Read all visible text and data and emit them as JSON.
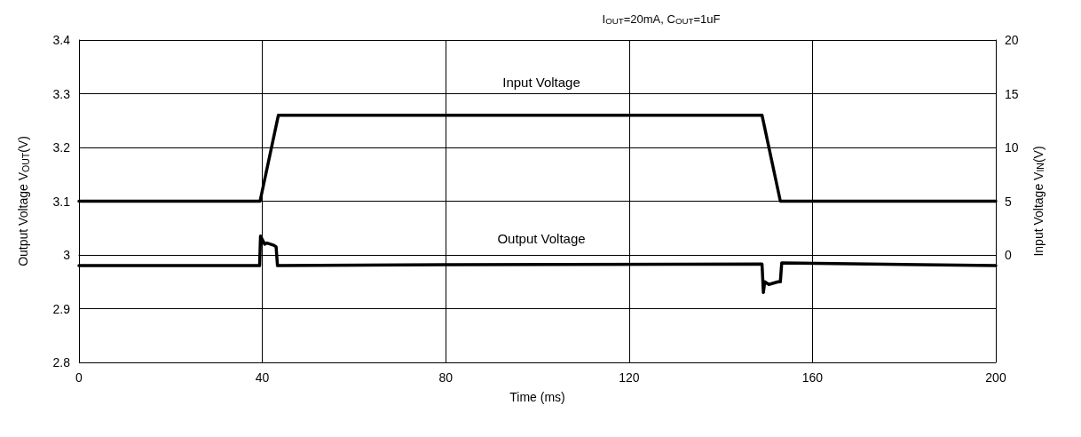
{
  "chart_data": {
    "type": "line",
    "title": "I$_{OUT}$=20mA, C$_{OUT}$=1uF",
    "xlabel": "Time (ms)",
    "ylabel": "Output Voltage V$_{OUT}$(V)",
    "y2label": "Input Voltage V$_{IN}$(V)",
    "xlim": [
      0,
      200
    ],
    "xticks": [
      0,
      40,
      80,
      120,
      160,
      200
    ],
    "ylim": [
      2.8,
      3.4
    ],
    "yticks": [
      2.8,
      2.9,
      3.0,
      3.1,
      3.2,
      3.3,
      3.4
    ],
    "y2lim": [
      -10,
      20
    ],
    "y2ticks": [
      0,
      5,
      10,
      15,
      20
    ],
    "series": [
      {
        "color": "#000000",
        "axis": "y2",
        "x": [
          0,
          39.5,
          43.5,
          149,
          153,
          200
        ],
        "values": [
          5,
          5,
          13,
          13,
          5,
          5
        ]
      },
      {
        "color": "#000000",
        "x": [
          0,
          39.4,
          39.6,
          40.5,
          41,
          42.5,
          43,
          43.3,
          80,
          149,
          149.3,
          149.6,
          150.5,
          152.5,
          153,
          153.3,
          200
        ],
        "values": [
          2.98,
          2.98,
          3.035,
          3.02,
          3.022,
          3.018,
          3.015,
          2.98,
          2.982,
          2.983,
          2.93,
          2.95,
          2.945,
          2.95,
          2.95,
          2.985,
          2.98
        ]
      }
    ],
    "annotations": [
      "Input Voltage",
      "Output Voltage"
    ],
    "grid": true,
    "marker": "none",
    "line_style": "solid"
  }
}
